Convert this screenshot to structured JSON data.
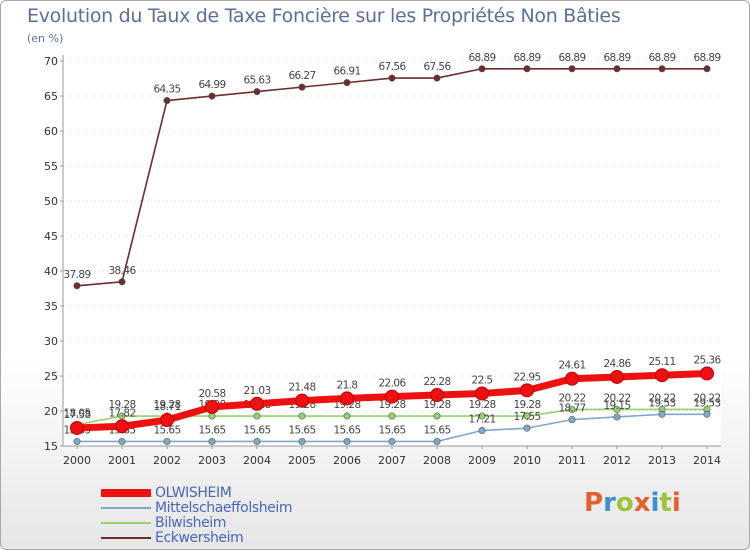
{
  "header": {
    "title": "Evolution du Taux de Taxe Foncière sur les Propriétés Non Bâties",
    "subtitle": "(en %)"
  },
  "logo": {
    "text": "Proxiti",
    "colors": [
      "#e5602a",
      "#3f8fd0",
      "#9bc43c",
      "#e5602a",
      "#3f8fd0",
      "#9bc43c",
      "#e5602a"
    ]
  },
  "chart_data": {
    "type": "line",
    "title": "Evolution du Taux de Taxe Foncière sur les Propriétés Non Bâties",
    "ylabel": "(en %)",
    "xlabel": "",
    "ylim": [
      15,
      70
    ],
    "yticks": [
      15,
      20,
      25,
      30,
      35,
      40,
      45,
      50,
      55,
      60,
      65,
      70
    ],
    "grid": "horizontal dotted",
    "legend_position": "bottom-left",
    "x": [
      "2000",
      "2001",
      "2002",
      "2003",
      "2004",
      "2005",
      "2006",
      "2007",
      "2008",
      "2009",
      "2010",
      "2011",
      "2012",
      "2013",
      "2014"
    ],
    "series": [
      {
        "name": "Eckwersheim",
        "color": "#6e2c2c",
        "values": [
          37.89,
          38.46,
          64.35,
          64.99,
          65.63,
          66.27,
          66.91,
          67.56,
          67.56,
          68.89,
          68.89,
          68.89,
          68.89,
          68.89,
          68.89
        ],
        "labels": [
          "37.89",
          "38.46",
          "64.35",
          "64.99",
          "65.63",
          "66.27",
          "66.91",
          "67.56",
          "67.56",
          "68.89",
          "68.89",
          "68.89",
          "68.89",
          "68.89",
          "68.89"
        ]
      },
      {
        "name": "Bilwisheim",
        "color": "#94d36a",
        "values": [
          18.05,
          19.28,
          19.28,
          19.28,
          19.28,
          19.28,
          19.28,
          19.28,
          19.28,
          19.28,
          19.28,
          20.22,
          20.22,
          20.22,
          20.22
        ],
        "labels": [
          "18.05",
          "19.28",
          "19.28",
          "19.28",
          "19.28",
          "19.28",
          "19.28",
          "19.28",
          "19.28",
          "19.28",
          "19.28",
          "20.22",
          "20.22",
          "20.22",
          "20.22"
        ]
      },
      {
        "name": "Mittelschaeffolsheim",
        "color": "#7fa8cc",
        "values": [
          15.65,
          15.65,
          15.65,
          15.65,
          15.65,
          15.65,
          15.65,
          15.65,
          15.65,
          17.21,
          17.55,
          18.77,
          19.15,
          19.53,
          19.53
        ],
        "labels": [
          "15.65",
          "15.65",
          "15.65",
          "15.65",
          "15.65",
          "15.65",
          "15.65",
          "15.65",
          "15.65",
          "17.21",
          "17.55",
          "18.77",
          "19.15",
          "19.53",
          "19.53"
        ]
      },
      {
        "name": "OLWISHEIM",
        "color": "#ee1111",
        "values": [
          17.58,
          17.82,
          18.71,
          20.58,
          21.03,
          21.48,
          21.8,
          22.06,
          22.28,
          22.5,
          22.95,
          24.61,
          24.86,
          25.11,
          25.36
        ],
        "labels": [
          "17.58",
          "17.82",
          "18.71",
          "20.58",
          "21.03",
          "21.48",
          "21.8",
          "22.06",
          "22.28",
          "22.5",
          "22.95",
          "24.61",
          "24.86",
          "25.11",
          "25.36"
        ]
      }
    ]
  },
  "legend": {
    "items": [
      {
        "label": "OLWISHEIM",
        "color": "#ee1111"
      },
      {
        "label": "Mittelschaeffolsheim",
        "color": "#7fa8cc"
      },
      {
        "label": "Bilwisheim",
        "color": "#94d36a"
      },
      {
        "label": "Eckwersheim",
        "color": "#6e2c2c"
      }
    ]
  }
}
